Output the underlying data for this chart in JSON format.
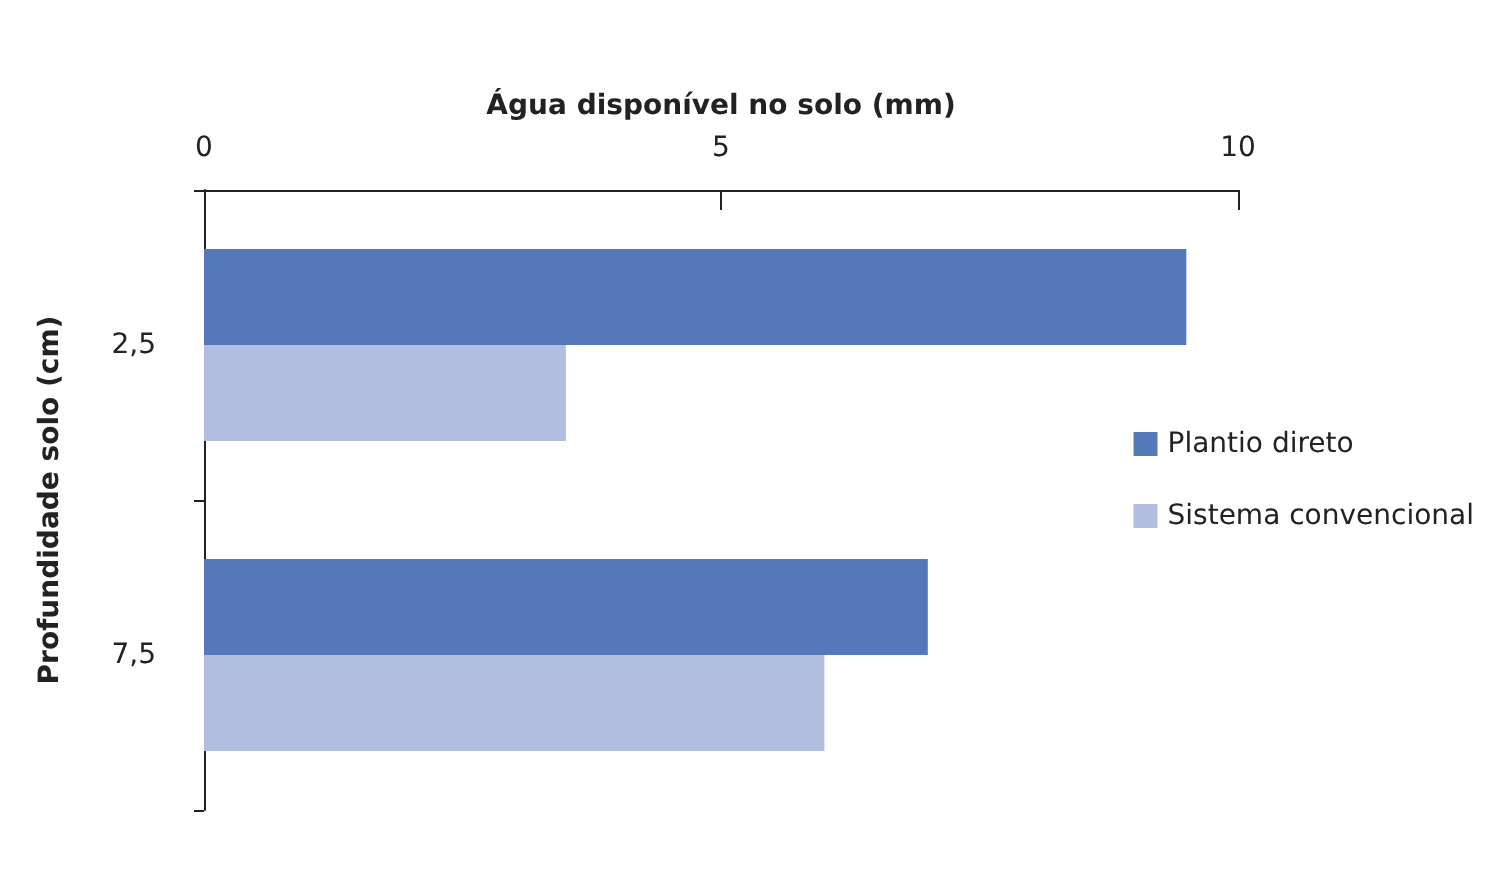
{
  "chart_data": {
    "type": "bar",
    "orientation": "horizontal",
    "xlabel": "Água disponível no solo (mm)",
    "ylabel": "Profundidade solo (cm)",
    "categories": [
      "2,5",
      "7,5"
    ],
    "series": [
      {
        "name": "Plantio direto",
        "color": "#5578bb",
        "values": [
          9.5,
          7.0
        ]
      },
      {
        "name": "Sistema convencional",
        "color": "#b3bde0",
        "values": [
          3.5,
          6.0
        ]
      }
    ],
    "xlim": [
      0,
      10
    ],
    "xticks": [
      0,
      5,
      10
    ],
    "grid": false,
    "legend": "right"
  }
}
